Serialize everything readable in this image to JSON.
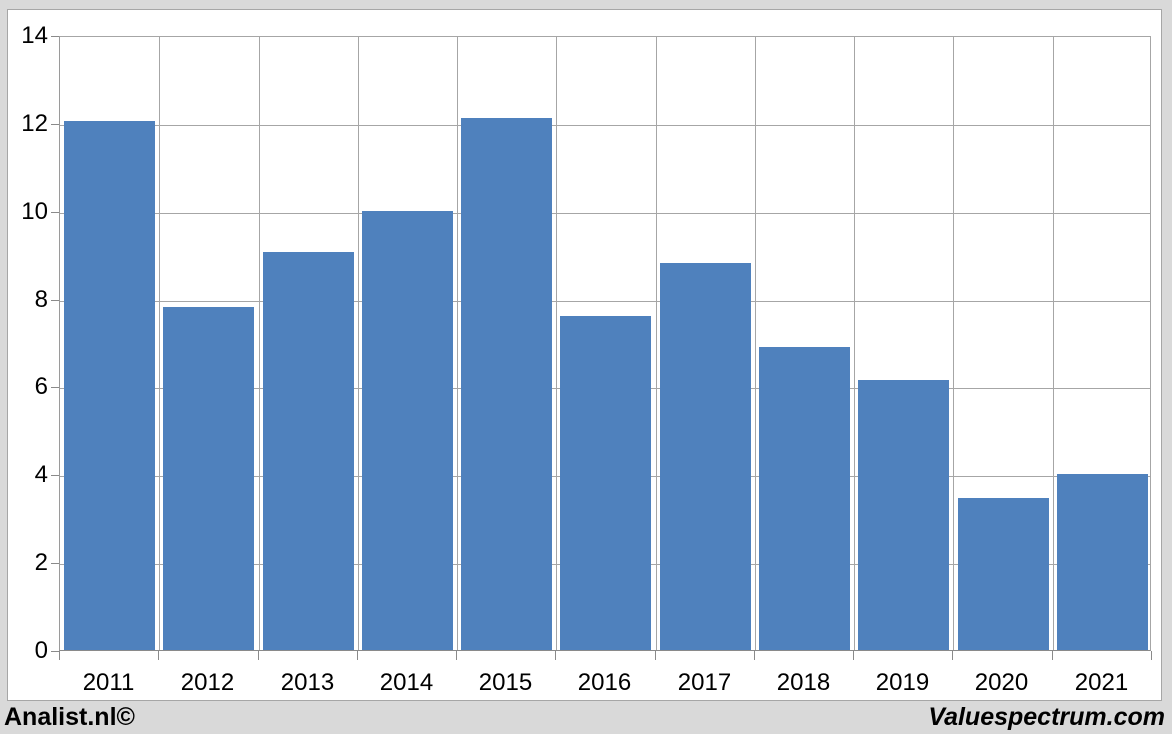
{
  "chart_data": {
    "type": "bar",
    "categories": [
      "2011",
      "2012",
      "2013",
      "2014",
      "2015",
      "2016",
      "2017",
      "2018",
      "2019",
      "2020",
      "2021"
    ],
    "values": [
      12.05,
      7.8,
      9.05,
      10.0,
      12.1,
      7.6,
      8.8,
      6.9,
      6.15,
      3.45,
      4.0
    ],
    "title": "",
    "xlabel": "",
    "ylabel": "",
    "ylim": [
      0,
      14
    ],
    "ytick_step": 2,
    "ytick_labels": [
      "0",
      "2",
      "4",
      "6",
      "8",
      "10",
      "12",
      "14"
    ],
    "grid": true,
    "legend": "none",
    "bar_color": "#4f81bd",
    "gridline_color": "#a6a6a6",
    "axis_color": "#8a8a8a",
    "plot_background": "#ffffff"
  },
  "branding": {
    "left": "Analist.nl©",
    "right": "Valuespectrum.com"
  },
  "frame": {
    "outer_background": "#d9d9d9",
    "canvas_background": "#ffffff",
    "canvas_border": "#a6a6a6"
  }
}
